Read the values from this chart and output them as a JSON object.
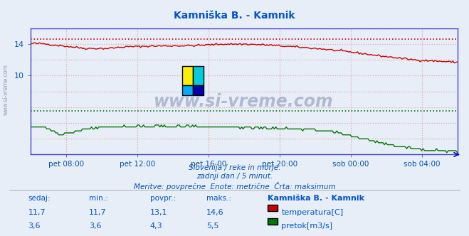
{
  "title": "Kamniška B. - Kamnik",
  "bg_color": "#e8eef8",
  "plot_bg_color": "#e8eef8",
  "grid_color": "#ddaaaa",
  "x_label_color": "#0055aa",
  "y_label_color": "#0055aa",
  "title_color": "#0055cc",
  "watermark_text": "www.si-vreme.com",
  "footer_line1": "Slovenija / reke in morje.",
  "footer_line2": "zadnji dan / 5 minut.",
  "footer_line3": "Meritve: povprečne  Enote: metrične  Črta: maksimum",
  "footer_color": "#0055aa",
  "x_ticks_labels": [
    "pet 08:00",
    "pet 12:00",
    "pet 16:00",
    "pet 20:00",
    "sob 00:00",
    "sob 04:00"
  ],
  "ylim": [
    0,
    16
  ],
  "y_ticks_show": [
    10,
    14
  ],
  "temp_color": "#cc0000",
  "flow_color": "#007700",
  "temp_max_line": 14.6,
  "flow_max_line": 5.5,
  "axis_color": "#0000cc",
  "spine_color": "#4444cc",
  "table_header": [
    "sedaj:",
    "min.:",
    "povpr.:",
    "maks.:",
    "Kamniška B. - Kamnik"
  ],
  "table_row1": [
    "11,7",
    "11,7",
    "13,1",
    "14,6",
    "temperatura[C]"
  ],
  "table_row2": [
    "3,6",
    "3,6",
    "4,3",
    "5,5",
    "pretok[m3/s]"
  ],
  "table_color": "#0055cc",
  "legend_temp_color": "#cc0000",
  "legend_flow_color": "#007700",
  "side_text": "www.si-vreme.com"
}
